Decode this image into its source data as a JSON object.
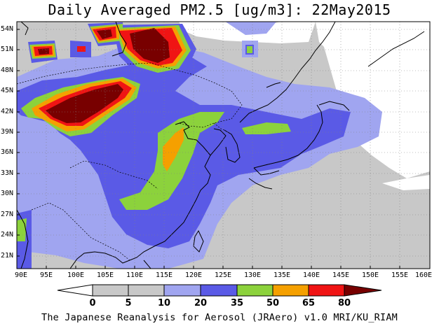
{
  "title": "Daily Averaged PM2.5 [ug/m3]: 22May2015",
  "map": {
    "lat_labels": [
      "54N",
      "51N",
      "48N",
      "45N",
      "42N",
      "39N",
      "36N",
      "33N",
      "30N",
      "27N",
      "24N",
      "21N"
    ],
    "lon_labels": [
      "90E",
      "95E",
      "100E",
      "105E",
      "110E",
      "115E",
      "120E",
      "125E",
      "130E",
      "135E",
      "140E",
      "145E",
      "150E",
      "155E",
      "160E"
    ],
    "lat_range": [
      20,
      55
    ],
    "lon_range": [
      90,
      160
    ]
  },
  "colorbar": {
    "labels": [
      "0",
      "5",
      "10",
      "20",
      "35",
      "50",
      "65",
      "80"
    ],
    "colors": [
      "#ffffff",
      "#c8c8c8",
      "#a0a5f0",
      "#5a5ae6",
      "#8cd23c",
      "#f5a000",
      "#f01414",
      "#780000"
    ]
  },
  "credit": "The Japanese Reanalysis for Aerosol (JRAero) v1.0 MRI/KU_RIAM"
}
